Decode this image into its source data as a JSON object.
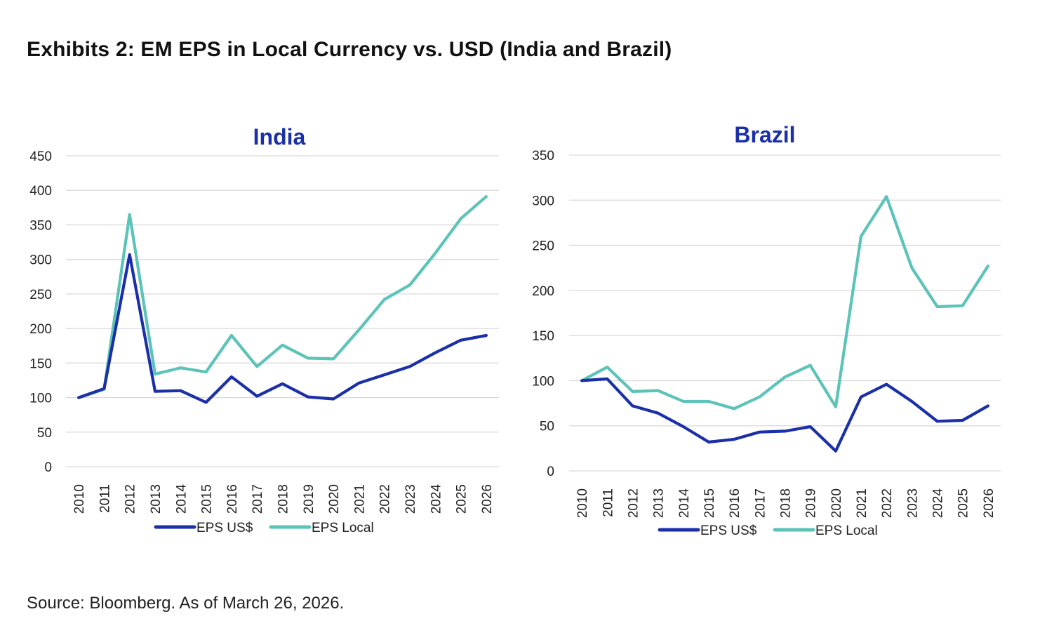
{
  "title": "Exhibits 2: EM EPS in Local Currency vs. USD (India and Brazil)",
  "source": "Source: Bloomberg. As of March 26, 2026.",
  "colors": {
    "eps_usd": "#1a2fa8",
    "eps_local": "#5bc3b8",
    "chart_title": "#1a2fa8",
    "grid": "#d9d9d9"
  },
  "chart_data": [
    {
      "type": "line",
      "title": "India",
      "x": [
        "2010",
        "2011",
        "2012",
        "2013",
        "2014",
        "2015",
        "2016",
        "2017",
        "2018",
        "2019",
        "2020",
        "2021",
        "2022",
        "2023",
        "2024",
        "2025",
        "2026"
      ],
      "ylim": [
        0,
        450
      ],
      "yticks": [
        0,
        50,
        100,
        150,
        200,
        250,
        300,
        350,
        400,
        450
      ],
      "grid": true,
      "legend": "bottom",
      "series": [
        {
          "name": "EPS US$",
          "values": [
            100,
            113,
            307,
            109,
            110,
            93,
            130,
            102,
            120,
            101,
            98,
            121,
            133,
            145,
            165,
            183,
            190
          ]
        },
        {
          "name": "EPS Local",
          "values": [
            100,
            112,
            365,
            134,
            143,
            137,
            190,
            145,
            176,
            157,
            156,
            198,
            242,
            263,
            309,
            359,
            391
          ]
        }
      ]
    },
    {
      "type": "line",
      "title": "Brazil",
      "x": [
        "2010",
        "2011",
        "2012",
        "2013",
        "2014",
        "2015",
        "2016",
        "2017",
        "2018",
        "2019",
        "2020",
        "2021",
        "2022",
        "2023",
        "2024",
        "2025",
        "2026"
      ],
      "ylim": [
        0,
        350
      ],
      "yticks": [
        0,
        50,
        100,
        150,
        200,
        250,
        300,
        350
      ],
      "grid": true,
      "legend": "bottom",
      "series": [
        {
          "name": "EPS US$",
          "values": [
            100,
            102,
            72,
            64,
            49,
            32,
            35,
            43,
            44,
            49,
            22,
            82,
            96,
            77,
            55,
            56,
            72
          ]
        },
        {
          "name": "EPS Local",
          "values": [
            100,
            115,
            88,
            89,
            77,
            77,
            69,
            82,
            104,
            117,
            71,
            260,
            304,
            225,
            182,
            183,
            227
          ]
        }
      ]
    }
  ]
}
